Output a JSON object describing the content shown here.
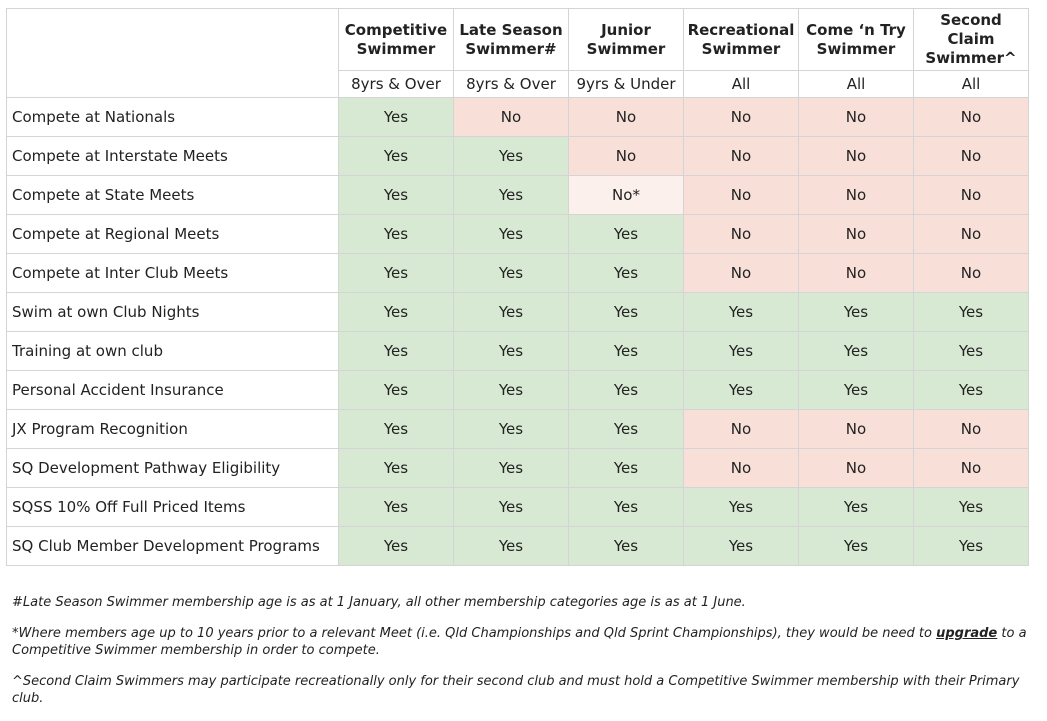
{
  "columns": [
    {
      "title_lines": [
        "Competitive",
        "Swimmer"
      ],
      "age": "8yrs & Over"
    },
    {
      "title_lines": [
        "Late Season",
        "Swimmer#"
      ],
      "age": "8yrs & Over"
    },
    {
      "title_lines": [
        "Junior",
        "Swimmer"
      ],
      "age": "9yrs & Under"
    },
    {
      "title_lines": [
        "Recreational",
        "Swimmer"
      ],
      "age": "All"
    },
    {
      "title_lines": [
        "Come ‘n Try",
        "Swimmer"
      ],
      "age": "All"
    },
    {
      "title_lines": [
        "Second",
        "Claim",
        "Swimmer^"
      ],
      "age": "All"
    }
  ],
  "rows": [
    {
      "label": "Compete at Nationals",
      "values": [
        "Yes",
        "No",
        "No",
        "No",
        "No",
        "No"
      ]
    },
    {
      "label": "Compete at Interstate Meets",
      "values": [
        "Yes",
        "Yes",
        "No",
        "No",
        "No",
        "No"
      ]
    },
    {
      "label": "Compete at State Meets",
      "values": [
        "Yes",
        "Yes",
        "No*",
        "No",
        "No",
        "No"
      ]
    },
    {
      "label": "Compete at Regional Meets",
      "values": [
        "Yes",
        "Yes",
        "Yes",
        "No",
        "No",
        "No"
      ]
    },
    {
      "label": "Compete at Inter Club Meets",
      "values": [
        "Yes",
        "Yes",
        "Yes",
        "No",
        "No",
        "No"
      ]
    },
    {
      "label": "Swim at own Club Nights",
      "values": [
        "Yes",
        "Yes",
        "Yes",
        "Yes",
        "Yes",
        "Yes"
      ]
    },
    {
      "label": "Training at own club",
      "values": [
        "Yes",
        "Yes",
        "Yes",
        "Yes",
        "Yes",
        "Yes"
      ]
    },
    {
      "label": "Personal Accident Insurance",
      "values": [
        "Yes",
        "Yes",
        "Yes",
        "Yes",
        "Yes",
        "Yes"
      ]
    },
    {
      "label": "JX Program Recognition",
      "values": [
        "Yes",
        "Yes",
        "Yes",
        "No",
        "No",
        "No"
      ]
    },
    {
      "label": "SQ Development Pathway Eligibility",
      "values": [
        "Yes",
        "Yes",
        "Yes",
        "No",
        "No",
        "No"
      ]
    },
    {
      "label": "SQSS 10% Off Full Priced Items",
      "values": [
        "Yes",
        "Yes",
        "Yes",
        "Yes",
        "Yes",
        "Yes"
      ]
    },
    {
      "label": "SQ Club Member Development Programs",
      "values": [
        "Yes",
        "Yes",
        "Yes",
        "Yes",
        "Yes",
        "Yes"
      ]
    }
  ],
  "notes": {
    "late_season": "#Late Season Swimmer membership age is as at 1 January, all other membership categories age is as at 1 June.",
    "junior_before": "*Where members age up to 10 years prior to a relevant Meet (i.e. Qld Championships and Qld Sprint Championships), they would be need to ",
    "junior_link": "upgrade",
    "junior_after": " to a Competitive Swimmer membership in order to compete.",
    "second_claim": "^Second Claim Swimmers may participate recreationally only for their second club and must hold a Competitive Swimmer membership with their Primary club."
  },
  "colors": {
    "yes": "#d7e9d2",
    "no": "#f8e0d9",
    "no_star": "#fcf0ed",
    "border": "#d4d4d4"
  }
}
